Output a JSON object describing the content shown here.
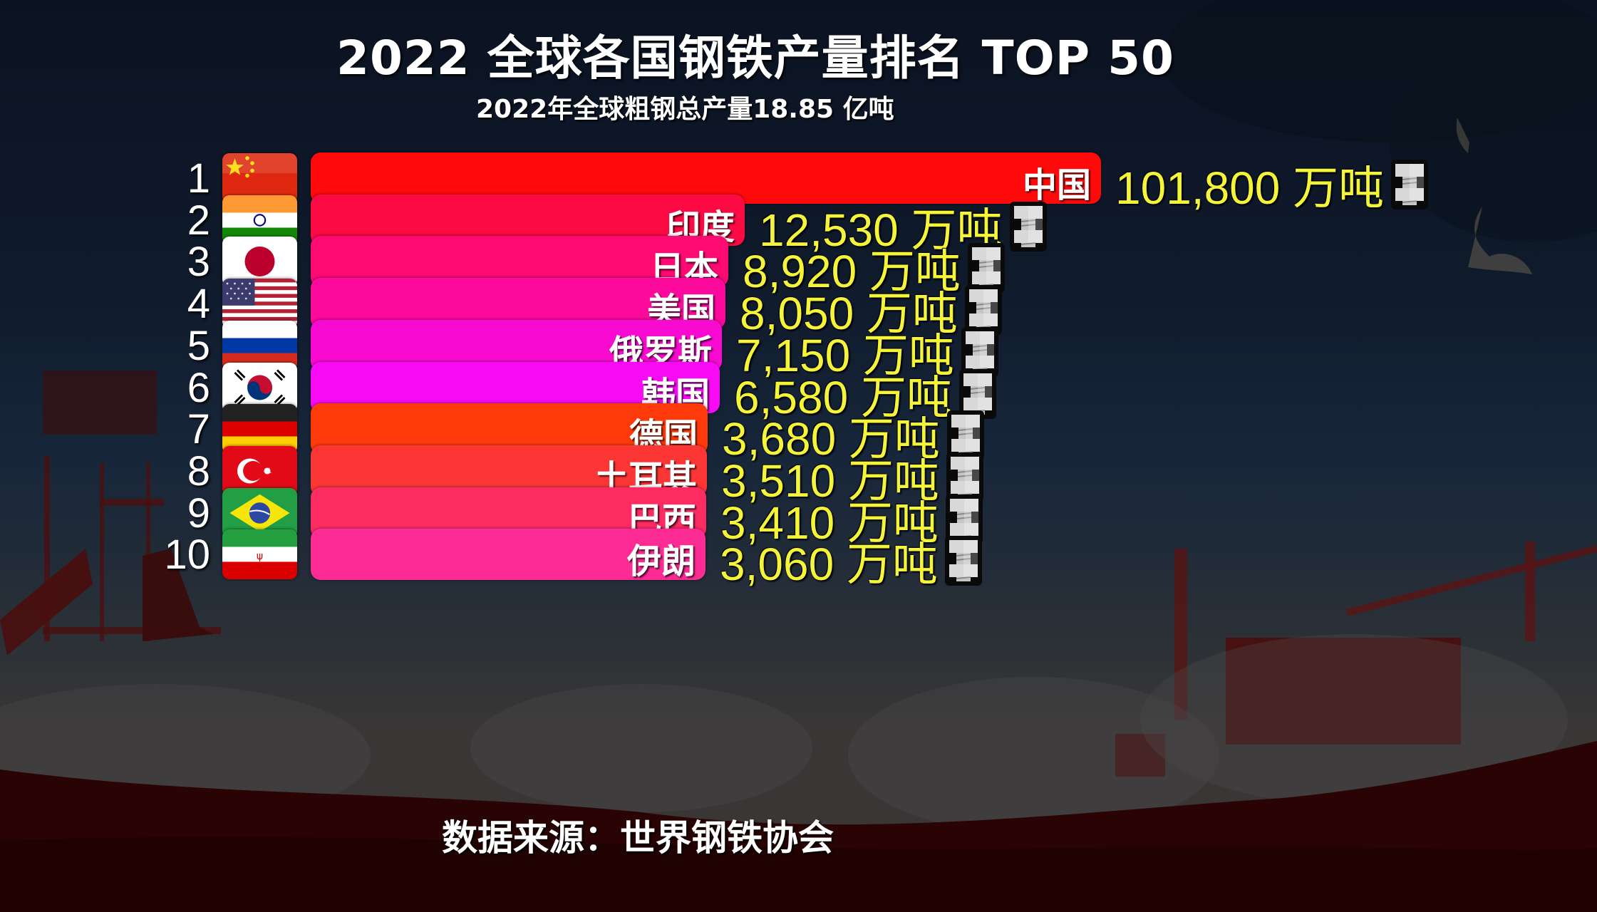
{
  "header": {
    "title": "2022 全球各国钢铁产量排名 TOP 50",
    "subtitle": "2022年全球粗钢总产量18.85 亿吨"
  },
  "footer": {
    "source": "数据来源：世界钢铁协会"
  },
  "unit": "万吨",
  "rows": [
    {
      "rank": "1",
      "country": "中国",
      "value_text": "101,800 万吨",
      "value": 101800,
      "flag": "china-flag-icon",
      "bar_color": "#ff0a0a",
      "bar_end": 1545
    },
    {
      "rank": "2",
      "country": "印度",
      "value_text": "12,530 万吨",
      "value": 12530,
      "flag": "india-flag-icon",
      "bar_color": "#fb0a44",
      "bar_end": 1045
    },
    {
      "rank": "3",
      "country": "日本",
      "value_text": "8,920 万吨",
      "value": 8920,
      "flag": "japan-flag-icon",
      "bar_color": "#fd0a72",
      "bar_end": 1022
    },
    {
      "rank": "4",
      "country": "美国",
      "value_text": "8,050 万吨",
      "value": 8050,
      "flag": "usa-flag-icon",
      "bar_color": "#fc0a9c",
      "bar_end": 1018
    },
    {
      "rank": "5",
      "country": "俄罗斯",
      "value_text": "7,150 万吨",
      "value": 7150,
      "flag": "russia-flag-icon",
      "bar_color": "#f80ad0",
      "bar_end": 1013
    },
    {
      "rank": "6",
      "country": "韩国",
      "value_text": "6,580 万吨",
      "value": 6580,
      "flag": "korea-flag-icon",
      "bar_color": "#f80af4",
      "bar_end": 1010
    },
    {
      "rank": "7",
      "country": "德国",
      "value_text": "3,680 万吨",
      "value": 3680,
      "flag": "germany-flag-icon",
      "bar_color": "#fe3a0a",
      "bar_end": 993
    },
    {
      "rank": "8",
      "country": "土耳其",
      "value_text": "3,510 万吨",
      "value": 3510,
      "flag": "turkey-flag-icon",
      "bar_color": "#fc3634",
      "bar_end": 992
    },
    {
      "rank": "9",
      "country": "巴西",
      "value_text": "3,410 万吨",
      "value": 3410,
      "flag": "brazil-flag-icon",
      "bar_color": "#fd2c62",
      "bar_end": 991
    },
    {
      "rank": "10",
      "country": "伊朗",
      "value_text": "3,060 万吨",
      "value": 3060,
      "flag": "iran-flag-icon",
      "bar_color": "#fc2c94",
      "bar_end": 990
    }
  ],
  "chart_data": {
    "type": "bar",
    "orientation": "horizontal",
    "title": "2022 全球各国钢铁产量排名 TOP 50",
    "subtitle": "2022年全球粗钢总产量18.85 亿吨",
    "categories": [
      "中国",
      "印度",
      "日本",
      "美国",
      "俄罗斯",
      "韩国",
      "德国",
      "土耳其",
      "巴西",
      "伊朗"
    ],
    "ranks": [
      1,
      2,
      3,
      4,
      5,
      6,
      7,
      8,
      9,
      10
    ],
    "values": [
      101800,
      12530,
      8920,
      8050,
      7150,
      6580,
      3680,
      3510,
      3410,
      3060
    ],
    "value_unit": "万吨",
    "xlabel": "",
    "ylabel": "",
    "grid": false,
    "legend": null,
    "source": "数据来源：世界钢铁协会"
  }
}
